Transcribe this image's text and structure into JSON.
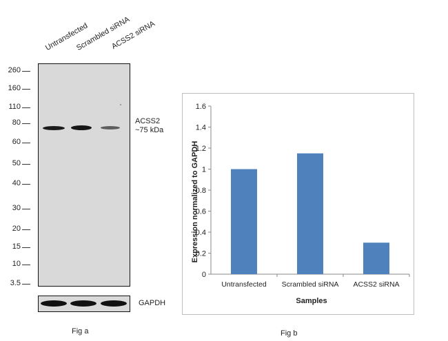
{
  "fig_a": {
    "lane_labels": [
      "Untransfected",
      "Scrambled siRNA",
      "ACSS2 siRNA"
    ],
    "mw_markers": [
      "260",
      "160",
      "110",
      "80",
      "60",
      "50",
      "40",
      "30",
      "20",
      "15",
      "10",
      "3.5"
    ],
    "target_label_line1": "ACSS2",
    "target_label_line2": "~75 kDa",
    "loading_control_label": "GAPDH",
    "caption": "Fig a",
    "band_intensity": [
      1.0,
      1.05,
      0.45
    ],
    "colors": {
      "membrane": "#d9d9d9",
      "band": "#111111"
    }
  },
  "fig_b": {
    "caption": "Fig b"
  },
  "chart_data": {
    "type": "bar",
    "categories": [
      "Untransfected",
      "Scrambled siRNA",
      "ACSS2 siRNA"
    ],
    "values": [
      1.0,
      1.15,
      0.3
    ],
    "title": "",
    "xlabel": "Samples",
    "ylabel": "Expression normalized to GAPDH",
    "ylim": [
      0,
      1.6
    ],
    "yticks": [
      "0",
      "0.2",
      "0.4",
      "0.6",
      "0.8",
      "1",
      "1.2",
      "1.4",
      "1.6"
    ],
    "grid": false,
    "legend": "none",
    "bar_color": "#4f81bd"
  }
}
